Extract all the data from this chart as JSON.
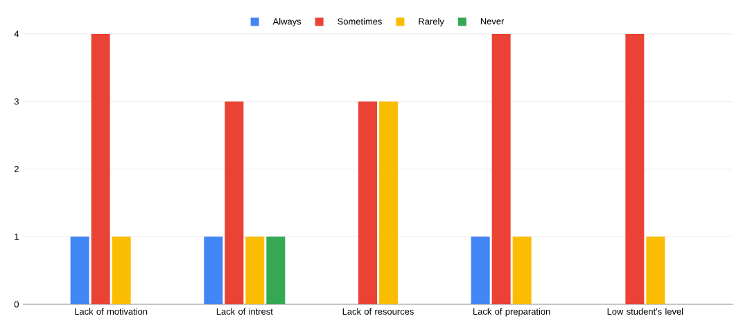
{
  "chart_data": {
    "type": "bar",
    "categories": [
      "Lack of motivation",
      "Lack of intrest",
      "Lack of resources",
      "Lack of preparation",
      "Low student's level"
    ],
    "series": [
      {
        "name": "Always",
        "color": "#4285f4",
        "values": [
          1,
          1,
          0,
          1,
          0
        ]
      },
      {
        "name": "Sometimes",
        "color": "#ea4335",
        "values": [
          4,
          3,
          3,
          4,
          4
        ]
      },
      {
        "name": "Rarely",
        "color": "#fbbc04",
        "values": [
          1,
          1,
          3,
          1,
          1
        ]
      },
      {
        "name": "Never",
        "color": "#34a853",
        "values": [
          0,
          1,
          0,
          0,
          0
        ]
      }
    ],
    "ylim": [
      0,
      4
    ],
    "yticks": [
      0,
      1,
      2,
      3,
      4
    ],
    "grid": "y",
    "legend": "top"
  }
}
